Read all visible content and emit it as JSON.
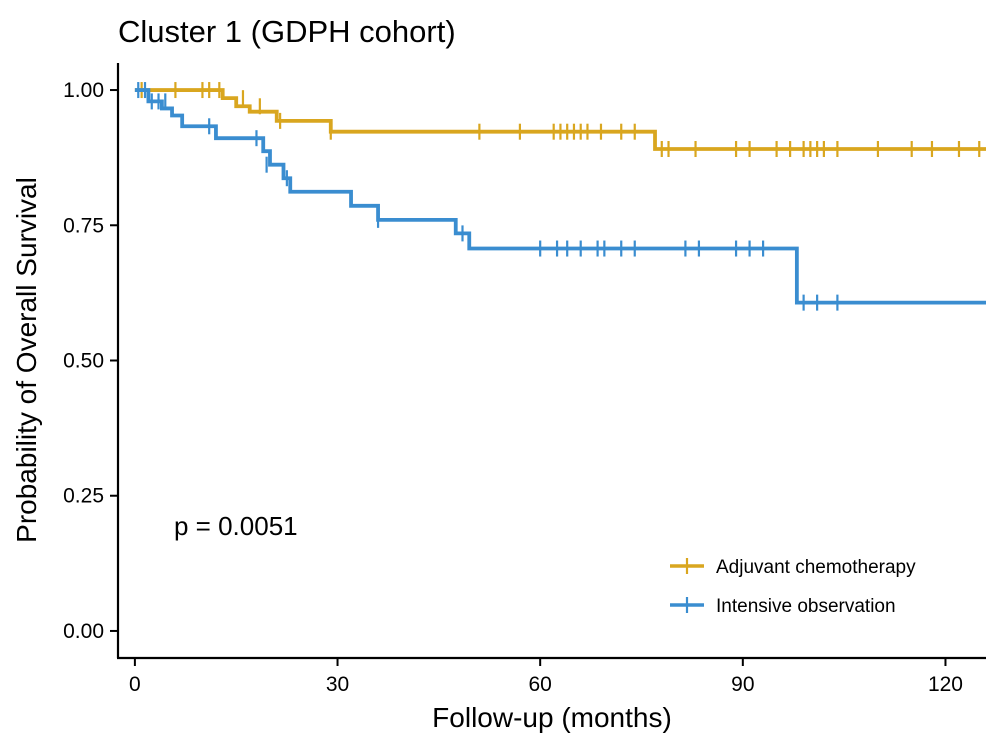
{
  "chart_data": {
    "type": "line",
    "title": "Cluster 1 (GDPH cohort)",
    "xlabel": "Follow-up (months)",
    "ylabel": "Probability of Overall Survival",
    "xlim": [
      -2.5,
      126
    ],
    "ylim": [
      -0.05,
      1.05
    ],
    "xticks": [
      0,
      30,
      60,
      90,
      120
    ],
    "xtick_labels": [
      "0",
      "30",
      "60",
      "90",
      "120"
    ],
    "yticks": [
      0,
      0.25,
      0.5,
      0.75,
      1
    ],
    "ytick_labels": [
      "0.00",
      "0.25",
      "0.50",
      "0.75",
      "1.00"
    ],
    "grid": false,
    "annotation": "p = 0.0051",
    "legend_position": "bottom-right",
    "series": [
      {
        "name": "Adjuvant chemotherapy",
        "color": "#D9A61F",
        "step_x": [
          0,
          13,
          15,
          17,
          21,
          29,
          77,
          126
        ],
        "step_y": [
          1.0,
          0.985,
          0.97,
          0.96,
          0.943,
          0.923,
          0.891,
          0.891
        ],
        "censor_x": [
          1,
          6,
          10,
          11,
          12.5,
          16,
          18.5,
          21.5,
          29,
          51,
          57,
          62,
          63,
          64,
          65,
          66,
          67,
          69,
          72,
          74,
          78,
          79,
          83,
          89,
          91,
          95,
          97,
          99,
          100,
          101,
          102,
          104,
          110,
          115,
          118,
          122,
          125
        ],
        "censor_y": [
          1.0,
          1.0,
          1.0,
          1.0,
          1.0,
          0.985,
          0.97,
          0.943,
          0.923,
          0.923,
          0.923,
          0.923,
          0.923,
          0.923,
          0.923,
          0.923,
          0.923,
          0.923,
          0.923,
          0.923,
          0.891,
          0.891,
          0.891,
          0.891,
          0.891,
          0.891,
          0.891,
          0.891,
          0.891,
          0.891,
          0.891,
          0.891,
          0.891,
          0.891,
          0.891,
          0.891,
          0.891
        ]
      },
      {
        "name": "Intensive observation",
        "color": "#3A8DD0",
        "step_x": [
          0,
          2,
          4,
          5.5,
          7,
          12,
          19,
          20,
          22,
          23,
          32,
          36,
          47.5,
          49.5,
          98,
          126
        ],
        "step_y": [
          1.0,
          0.979,
          0.966,
          0.953,
          0.933,
          0.911,
          0.887,
          0.862,
          0.837,
          0.812,
          0.786,
          0.76,
          0.735,
          0.707,
          0.607,
          0.607
        ],
        "censor_x": [
          0.5,
          1.5,
          2.5,
          3.5,
          4.5,
          11,
          18,
          19.5,
          22.5,
          36,
          48.5,
          60,
          62.5,
          64,
          66,
          68.5,
          69.5,
          72,
          74,
          81.5,
          83.5,
          89,
          91,
          93,
          99,
          101,
          104
        ],
        "censor_y": [
          1.0,
          1.0,
          0.979,
          0.979,
          0.979,
          0.933,
          0.911,
          0.862,
          0.837,
          0.76,
          0.735,
          0.707,
          0.707,
          0.707,
          0.707,
          0.707,
          0.707,
          0.707,
          0.707,
          0.707,
          0.707,
          0.707,
          0.707,
          0.707,
          0.607,
          0.607,
          0.607
        ]
      }
    ]
  }
}
